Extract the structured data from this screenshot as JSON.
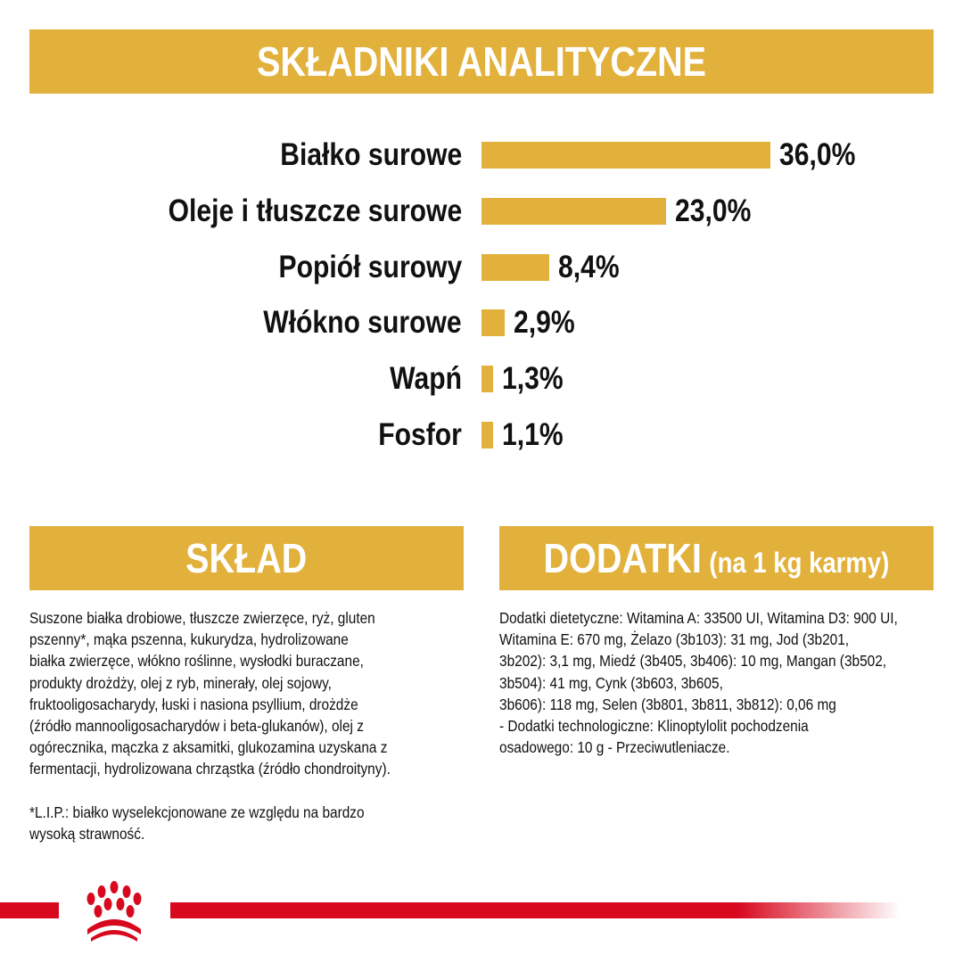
{
  "header": {
    "title": "SKŁADNIKI ANALITYCZNE"
  },
  "chart_data": {
    "type": "bar",
    "orientation": "horizontal",
    "categories": [
      "Białko surowe",
      "Oleje i tłuszcze surowe",
      "Popiół surowy",
      "Włókno surowe",
      "Wapń",
      "Fosfor"
    ],
    "values": [
      36.0,
      23.0,
      8.4,
      2.9,
      1.3,
      1.1
    ],
    "value_labels": [
      "36,0%",
      "23,0%",
      "8,4%",
      "2,9%",
      "1,3%",
      "1,1%"
    ],
    "unit": "%",
    "bar_color": "#e2b13c",
    "grid": false
  },
  "sklad": {
    "title": "SKŁAD",
    "lines": [
      "Suszone białka drobiowe, tłuszcze zwierzęce, ryż, gluten",
      "pszenny*, mąka pszenna, kukurydza, hydrolizowane",
      "białka zwierzęce, włókno roślinne, wysłodki buraczane,",
      "produkty drożdży, olej z ryb, minerały, olej sojowy,",
      "fruktooligosacharydy, łuski i nasiona psyllium, drożdże",
      "(źródło mannooligosacharydów i beta-glukanów), olej z",
      "ogórecznika, mączka z aksamitki, glukozamina uzyskana z",
      "fermentacji, hydrolizowana chrząstka (źródło chondroityny)."
    ],
    "footnote": [
      "*L.I.P.: białko wyselekcjonowane ze względu na bardzo",
      "wysoką strawność."
    ]
  },
  "dodatki": {
    "title": "DODATKI",
    "subtitle": "(na 1 kg karmy)",
    "lines": [
      "Dodatki dietetyczne: Witamina A: 33500 UI, Witamina D3: 900 UI,",
      "Witamina E: 670 mg, Żelazo (3b103): 31 mg, Jod (3b201,",
      "3b202): 3,1 mg, Miedź (3b405, 3b406): 10 mg, Mangan (3b502,",
      "3b504): 41 mg, Cynk (3b603, 3b605,",
      "3b606): 118 mg, Selen (3b801, 3b811, 3b812): 0,06 mg",
      "- Dodatki technologiczne: Klinoptylolit pochodzenia",
      "osadowego: 10 g - Przeciwutleniacze."
    ]
  },
  "colors": {
    "accent": "#e2b13c",
    "brand_red": "#d8091f"
  },
  "logo": {
    "icon": "royal-canin-crown-paw-logo"
  }
}
